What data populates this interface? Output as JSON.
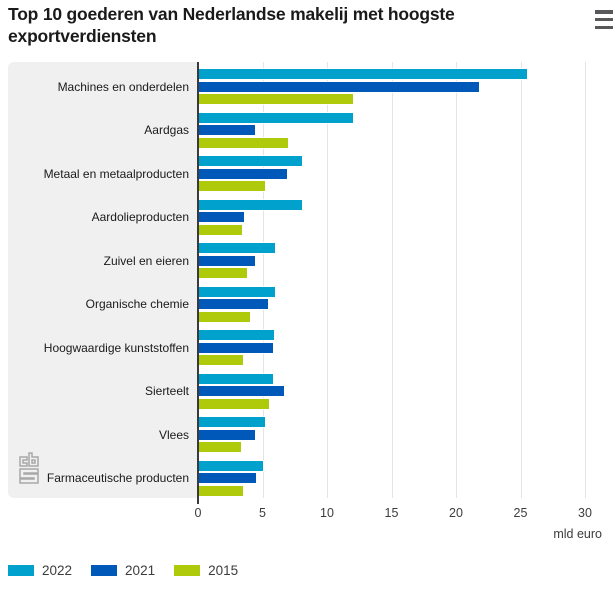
{
  "header": {
    "title": "Top 10 goederen van Nederlandse makelij met hoogste exportverdiensten"
  },
  "chart_data": {
    "type": "bar",
    "orientation": "horizontal",
    "title": "Top 10 goederen van Nederlandse makelij met hoogste exportverdiensten",
    "categories": [
      "Machines en onderdelen",
      "Aardgas",
      "Metaal en metaalproducten",
      "Aardolieproducten",
      "Zuivel en eieren",
      "Organische chemie",
      "Hoogwaardige kunststoffen",
      "Sierteelt",
      "Vlees",
      "Farmaceutische producten"
    ],
    "series": [
      {
        "name": "2022",
        "color": "#00a1cd",
        "values": [
          25.5,
          12.0,
          8.1,
          8.1,
          6.0,
          6.0,
          5.9,
          5.8,
          5.2,
          5.0
        ]
      },
      {
        "name": "2021",
        "color": "#0058b8",
        "values": [
          21.8,
          4.4,
          6.9,
          3.6,
          4.4,
          5.4,
          5.8,
          6.7,
          4.4,
          4.5
        ]
      },
      {
        "name": "2015",
        "color": "#afca0b",
        "values": [
          12.0,
          7.0,
          5.2,
          3.4,
          3.8,
          4.0,
          3.5,
          5.5,
          3.3,
          3.5
        ]
      }
    ],
    "xlabel": "mld euro",
    "xticks": [
      0,
      5,
      10,
      15,
      20,
      25,
      30
    ],
    "xlim": [
      0,
      31.8
    ],
    "grid": true,
    "legend_position": "bottom"
  },
  "legend": {
    "items": [
      {
        "label": "2022",
        "color": "#00a1cd"
      },
      {
        "label": "2021",
        "color": "#0058b8"
      },
      {
        "label": "2015",
        "color": "#afca0b"
      }
    ]
  },
  "icons": {
    "menu": "hamburger-menu-icon",
    "logo": "cbs-logo"
  },
  "colors": {
    "panel_bg": "#f0f0f0",
    "plot_bg": "#ffffff",
    "grid": "#e4e4e4",
    "axis": "#3a3a3a",
    "title_text": "#1a1a1a",
    "tick_text": "#3c3c3c"
  }
}
